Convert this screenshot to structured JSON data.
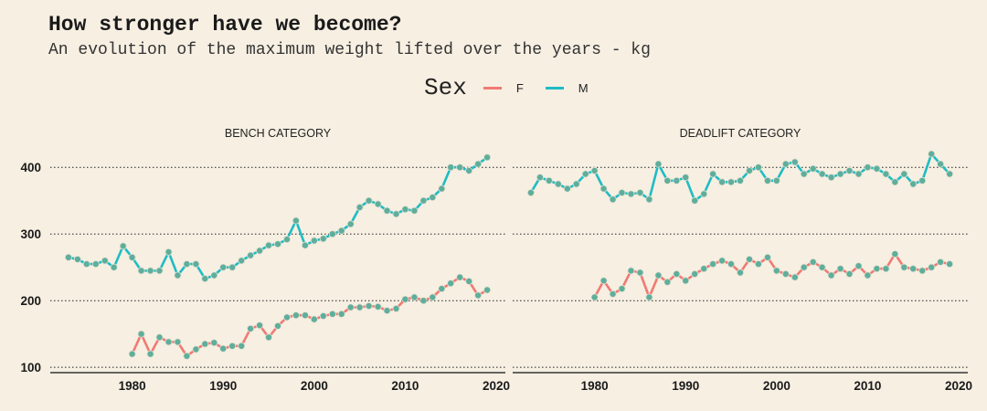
{
  "title": "How stronger have we become?",
  "subtitle": "An evolution of the maximum weight lifted over the years - kg",
  "legend": {
    "title": "Sex",
    "items": [
      {
        "label": "F",
        "color": "#f07a73"
      },
      {
        "label": "M",
        "color": "#1fbcc4"
      }
    ]
  },
  "colors": {
    "background": "#f6efe2",
    "point": "#5fae9c",
    "point_edge": "#e8e2d2",
    "grid": "#222222"
  },
  "chart_data": [
    {
      "type": "line",
      "title": "BENCH CATEGORY",
      "xlabel": "",
      "ylabel": "",
      "xlim": [
        1971,
        2021
      ],
      "ylim": [
        92,
        425
      ],
      "x_ticks": [
        1980,
        1990,
        2000,
        2010,
        2020
      ],
      "y_ticks": [
        100,
        200,
        300,
        400
      ],
      "grid": "horizontal dotted",
      "series": [
        {
          "name": "F",
          "x": [
            1980,
            1981,
            1982,
            1983,
            1984,
            1985,
            1986,
            1987,
            1988,
            1989,
            1990,
            1991,
            1992,
            1993,
            1994,
            1995,
            1996,
            1997,
            1998,
            1999,
            2000,
            2001,
            2002,
            2003,
            2004,
            2005,
            2006,
            2007,
            2008,
            2009,
            2010,
            2011,
            2012,
            2013,
            2014,
            2015,
            2016,
            2017,
            2018,
            2019
          ],
          "y": [
            120,
            150,
            120,
            145,
            138,
            138,
            117,
            127,
            135,
            137,
            128,
            132,
            132,
            158,
            163,
            145,
            162,
            175,
            178,
            178,
            172,
            177,
            180,
            180,
            190,
            190,
            192,
            191,
            185,
            188,
            202,
            205,
            200,
            205,
            218,
            226,
            235,
            229,
            208,
            216
          ]
        },
        {
          "name": "M",
          "x": [
            1973,
            1974,
            1975,
            1976,
            1977,
            1978,
            1979,
            1980,
            1981,
            1982,
            1983,
            1984,
            1985,
            1986,
            1987,
            1988,
            1989,
            1990,
            1991,
            1992,
            1993,
            1994,
            1995,
            1996,
            1997,
            1998,
            1999,
            2000,
            2001,
            2002,
            2003,
            2004,
            2005,
            2006,
            2007,
            2008,
            2009,
            2010,
            2011,
            2012,
            2013,
            2014,
            2015,
            2016,
            2017,
            2018,
            2019
          ],
          "y": [
            265,
            262,
            255,
            255,
            260,
            250,
            282,
            265,
            245,
            245,
            245,
            273,
            238,
            255,
            255,
            233,
            238,
            250,
            250,
            260,
            268,
            275,
            283,
            285,
            292,
            320,
            283,
            290,
            293,
            300,
            305,
            315,
            340,
            350,
            345,
            335,
            330,
            337,
            335,
            350,
            355,
            368,
            400,
            400,
            395,
            405,
            415
          ]
        }
      ]
    },
    {
      "type": "line",
      "title": "DEADLIFT CATEGORY",
      "xlabel": "",
      "ylabel": "",
      "xlim": [
        1971,
        2021
      ],
      "ylim": [
        92,
        425
      ],
      "x_ticks": [
        1980,
        1990,
        2000,
        2010,
        2020
      ],
      "y_ticks": [
        100,
        200,
        300,
        400
      ],
      "grid": "horizontal dotted",
      "series": [
        {
          "name": "F",
          "x": [
            1980,
            1981,
            1982,
            1983,
            1984,
            1985,
            1986,
            1987,
            1988,
            1989,
            1990,
            1991,
            1992,
            1993,
            1994,
            1995,
            1996,
            1997,
            1998,
            1999,
            2000,
            2001,
            2002,
            2003,
            2004,
            2005,
            2006,
            2007,
            2008,
            2009,
            2010,
            2011,
            2012,
            2013,
            2014,
            2015,
            2016,
            2017,
            2018,
            2019
          ],
          "y": [
            205,
            230,
            210,
            218,
            245,
            242,
            205,
            238,
            228,
            240,
            230,
            240,
            248,
            255,
            260,
            255,
            242,
            262,
            255,
            265,
            245,
            240,
            235,
            250,
            258,
            250,
            238,
            248,
            240,
            252,
            238,
            248,
            248,
            270,
            250,
            248,
            245,
            250,
            258,
            255
          ]
        },
        {
          "name": "M",
          "x": [
            1973,
            1974,
            1975,
            1976,
            1977,
            1978,
            1979,
            1980,
            1981,
            1982,
            1983,
            1984,
            1985,
            1986,
            1987,
            1988,
            1989,
            1990,
            1991,
            1992,
            1993,
            1994,
            1995,
            1996,
            1997,
            1998,
            1999,
            2000,
            2001,
            2002,
            2003,
            2004,
            2005,
            2006,
            2007,
            2008,
            2009,
            2010,
            2011,
            2012,
            2013,
            2014,
            2015,
            2016,
            2017,
            2018,
            2019
          ],
          "y": [
            362,
            385,
            380,
            375,
            368,
            375,
            390,
            395,
            368,
            352,
            362,
            360,
            362,
            352,
            405,
            380,
            380,
            385,
            350,
            360,
            390,
            378,
            378,
            380,
            395,
            400,
            380,
            380,
            405,
            408,
            390,
            398,
            390,
            385,
            390,
            395,
            390,
            400,
            398,
            390,
            378,
            390,
            375,
            380,
            420,
            405,
            390
          ]
        }
      ]
    }
  ]
}
